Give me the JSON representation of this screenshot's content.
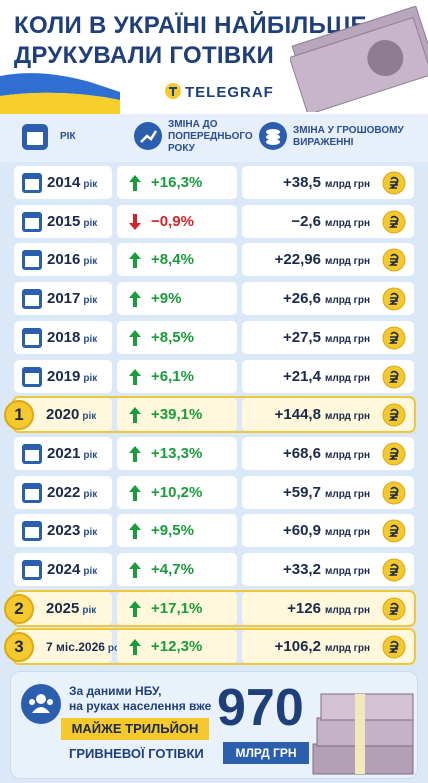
{
  "header": {
    "title_line1": "КОЛИ В УКРАЇНІ НАЙБІЛЬШЕ",
    "title_line2": "ДРУКУВАЛИ ГОТІВКИ",
    "brand": "TELEGRAF"
  },
  "columns": [
    "РІК",
    "ЗМІНА ДО ПОПЕРЕДНЬОГО РОКУ",
    "ЗМІНА У ГРОШОВОМУ ВИРАЖЕННІ"
  ],
  "rows": [
    {
      "year": "2014",
      "suffix": "рік",
      "change": "+16,3%",
      "amount": "+38,5",
      "unit": "млрд грн"
    },
    {
      "year": "2015",
      "suffix": "рік",
      "change": "−0,9%",
      "amount": "−2,6",
      "unit": "млрд грн"
    },
    {
      "year": "2016",
      "suffix": "рік",
      "change": "+8,4%",
      "amount": "+22,96",
      "unit": "млрд грн"
    },
    {
      "year": "2017",
      "suffix": "рік",
      "change": "+9%",
      "amount": "+26,6",
      "unit": "млрд грн"
    },
    {
      "year": "2018",
      "suffix": "рік",
      "change": "+8,5%",
      "amount": "+27,5",
      "unit": "млрд грн"
    },
    {
      "year": "2019",
      "suffix": "рік",
      "change": "+6,1%",
      "amount": "+21,4",
      "unit": "млрд грн"
    },
    {
      "rank": "1",
      "year": "2020",
      "suffix": "рік",
      "change": "+39,1%",
      "amount": "+144,8",
      "unit": "млрд грн"
    },
    {
      "year": "2021",
      "suffix": "рік",
      "change": "+13,3%",
      "amount": "+68,6",
      "unit": "млрд грн"
    },
    {
      "year": "2022",
      "suffix": "рік",
      "change": "+10,2%",
      "amount": "+59,7",
      "unit": "млрд грн"
    },
    {
      "year": "2023",
      "suffix": "рік",
      "change": "+9,5%",
      "amount": "+60,9",
      "unit": "млрд грн"
    },
    {
      "year": "2024",
      "suffix": "рік",
      "change": "+4,7%",
      "amount": "+33,2",
      "unit": "млрд грн"
    },
    {
      "rank": "2",
      "year": "2025",
      "suffix": "рік",
      "change": "+17,1%",
      "amount": "+126",
      "unit": "млрд грн"
    },
    {
      "rank": "3",
      "year": "7 міс.2026",
      "suffix": "року",
      "change": "+12,3%",
      "amount": "+106,2",
      "unit": "млрд грн"
    }
  ],
  "footer": {
    "line1": "За даними НБУ,",
    "line2": "на руках населення вже",
    "highlight": "МАЙЖЕ ТРИЛЬЙОН",
    "line3": "ГРИВНЕВОЇ ГОТІВКИ",
    "number": "970",
    "unit": "МЛРД ГРН"
  }
}
